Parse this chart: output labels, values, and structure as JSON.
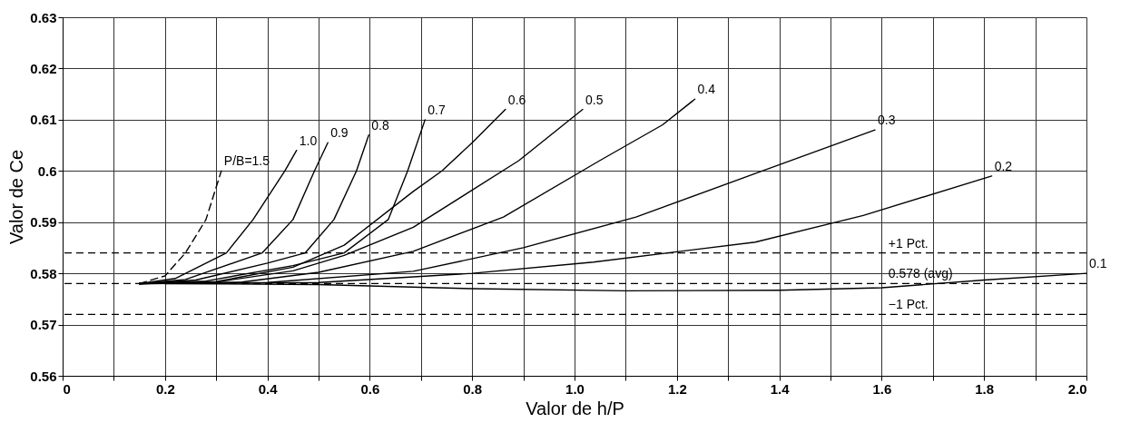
{
  "chart_data": {
    "type": "line",
    "xlabel": "Valor de h/P",
    "ylabel": "Valor de Ce",
    "xlim": [
      0,
      2.0
    ],
    "ylim": [
      0.56,
      0.63
    ],
    "xticks": [
      {
        "value": 0,
        "label": "0"
      },
      {
        "value": 0.1,
        "label": null
      },
      {
        "value": 0.2,
        "label": "0.2"
      },
      {
        "value": 0.3,
        "label": null
      },
      {
        "value": 0.4,
        "label": "0.4"
      },
      {
        "value": 0.5,
        "label": null
      },
      {
        "value": 0.6,
        "label": "0.6"
      },
      {
        "value": 0.7,
        "label": null
      },
      {
        "value": 0.8,
        "label": "0.8"
      },
      {
        "value": 0.9,
        "label": null
      },
      {
        "value": 1.0,
        "label": "1.0"
      },
      {
        "value": 1.1,
        "label": null
      },
      {
        "value": 1.2,
        "label": "1.2"
      },
      {
        "value": 1.3,
        "label": null
      },
      {
        "value": 1.4,
        "label": "1.4"
      },
      {
        "value": 1.5,
        "label": null
      },
      {
        "value": 1.6,
        "label": "1.6"
      },
      {
        "value": 1.7,
        "label": null
      },
      {
        "value": 1.8,
        "label": "1.8"
      },
      {
        "value": 1.9,
        "label": null
      },
      {
        "value": 2.0,
        "label": "2.0"
      }
    ],
    "yticks": [
      0.56,
      0.57,
      0.58,
      0.59,
      0.6,
      0.61,
      0.62,
      0.63
    ],
    "grid": true,
    "marker": "none",
    "series": [
      {
        "name": "P/B=1.5",
        "color": "#000000",
        "line_style": "dashed",
        "x": [
          0.15,
          0.2,
          0.24,
          0.28,
          0.31
        ],
        "values": [
          0.578,
          0.5795,
          0.584,
          0.5905,
          0.6
        ]
      },
      {
        "name": "1.0",
        "color": "#000000",
        "x": [
          0.15,
          0.22,
          0.32,
          0.372,
          0.434,
          0.457
        ],
        "values": [
          0.578,
          0.579,
          0.584,
          0.5905,
          0.6,
          0.604
        ]
      },
      {
        "name": "0.9",
        "color": "#000000",
        "x": [
          0.15,
          0.24,
          0.39,
          0.45,
          0.492,
          0.518
        ],
        "values": [
          0.578,
          0.5788,
          0.584,
          0.5905,
          0.6,
          0.6055
        ]
      },
      {
        "name": "0.8",
        "color": "#000000",
        "x": [
          0.15,
          0.26,
          0.4,
          0.474,
          0.53,
          0.574,
          0.598
        ],
        "values": [
          0.578,
          0.5787,
          0.582,
          0.584,
          0.5905,
          0.6,
          0.607
        ]
      },
      {
        "name": "0.7",
        "color": "#000000",
        "x": [
          0.15,
          0.28,
          0.45,
          0.55,
          0.636,
          0.674,
          0.708
        ],
        "values": [
          0.578,
          0.5785,
          0.5815,
          0.584,
          0.5905,
          0.6,
          0.61
        ]
      },
      {
        "name": "0.6",
        "color": "#000000",
        "x": [
          0.15,
          0.3,
          0.45,
          0.55,
          0.685,
          0.741,
          0.8,
          0.865
        ],
        "values": [
          0.578,
          0.5784,
          0.5812,
          0.5855,
          0.596,
          0.6,
          0.6055,
          0.612
        ]
      },
      {
        "name": "0.5",
        "color": "#000000",
        "x": [
          0.15,
          0.3,
          0.45,
          0.55,
          0.685,
          0.891,
          1.016
        ],
        "values": [
          0.578,
          0.5783,
          0.5805,
          0.5835,
          0.589,
          0.602,
          0.612
        ]
      },
      {
        "name": "0.4",
        "color": "#000000",
        "x": [
          0.15,
          0.35,
          0.5,
          0.685,
          0.861,
          1.049,
          1.172,
          1.235
        ],
        "values": [
          0.578,
          0.5783,
          0.5802,
          0.5843,
          0.591,
          0.602,
          0.609,
          0.614
        ]
      },
      {
        "name": "0.3",
        "color": "#000000",
        "x": [
          0.15,
          0.4,
          0.685,
          0.9,
          1.12,
          1.353,
          1.587
        ],
        "values": [
          0.578,
          0.5782,
          0.5804,
          0.585,
          0.591,
          0.5995,
          0.608
        ]
      },
      {
        "name": "0.2",
        "color": "#000000",
        "x": [
          0.15,
          0.5,
          0.8,
          1.037,
          1.353,
          1.564,
          1.815
        ],
        "values": [
          0.578,
          0.5782,
          0.58,
          0.5822,
          0.5861,
          0.5913,
          0.599
        ]
      },
      {
        "name": "0.1",
        "color": "#000000",
        "x": [
          0.2,
          0.5,
          0.8,
          1.1,
          1.4,
          1.6,
          1.8,
          2.0
        ],
        "values": [
          0.578,
          0.5778,
          0.577,
          0.5766,
          0.5767,
          0.5772,
          0.5787,
          0.58
        ]
      }
    ],
    "ref_lines": [
      {
        "axis": "y",
        "value": 0.584,
        "label": "+1 Pct.",
        "color": "#000000",
        "line_style": "dashed"
      },
      {
        "axis": "y",
        "value": 0.578,
        "label": "0.578 (avg)",
        "color": "#000000",
        "line_style": "dashed"
      },
      {
        "axis": "y",
        "value": 0.572,
        "label": "−1 Pct.",
        "color": "#000000",
        "line_style": "dashed"
      }
    ]
  }
}
